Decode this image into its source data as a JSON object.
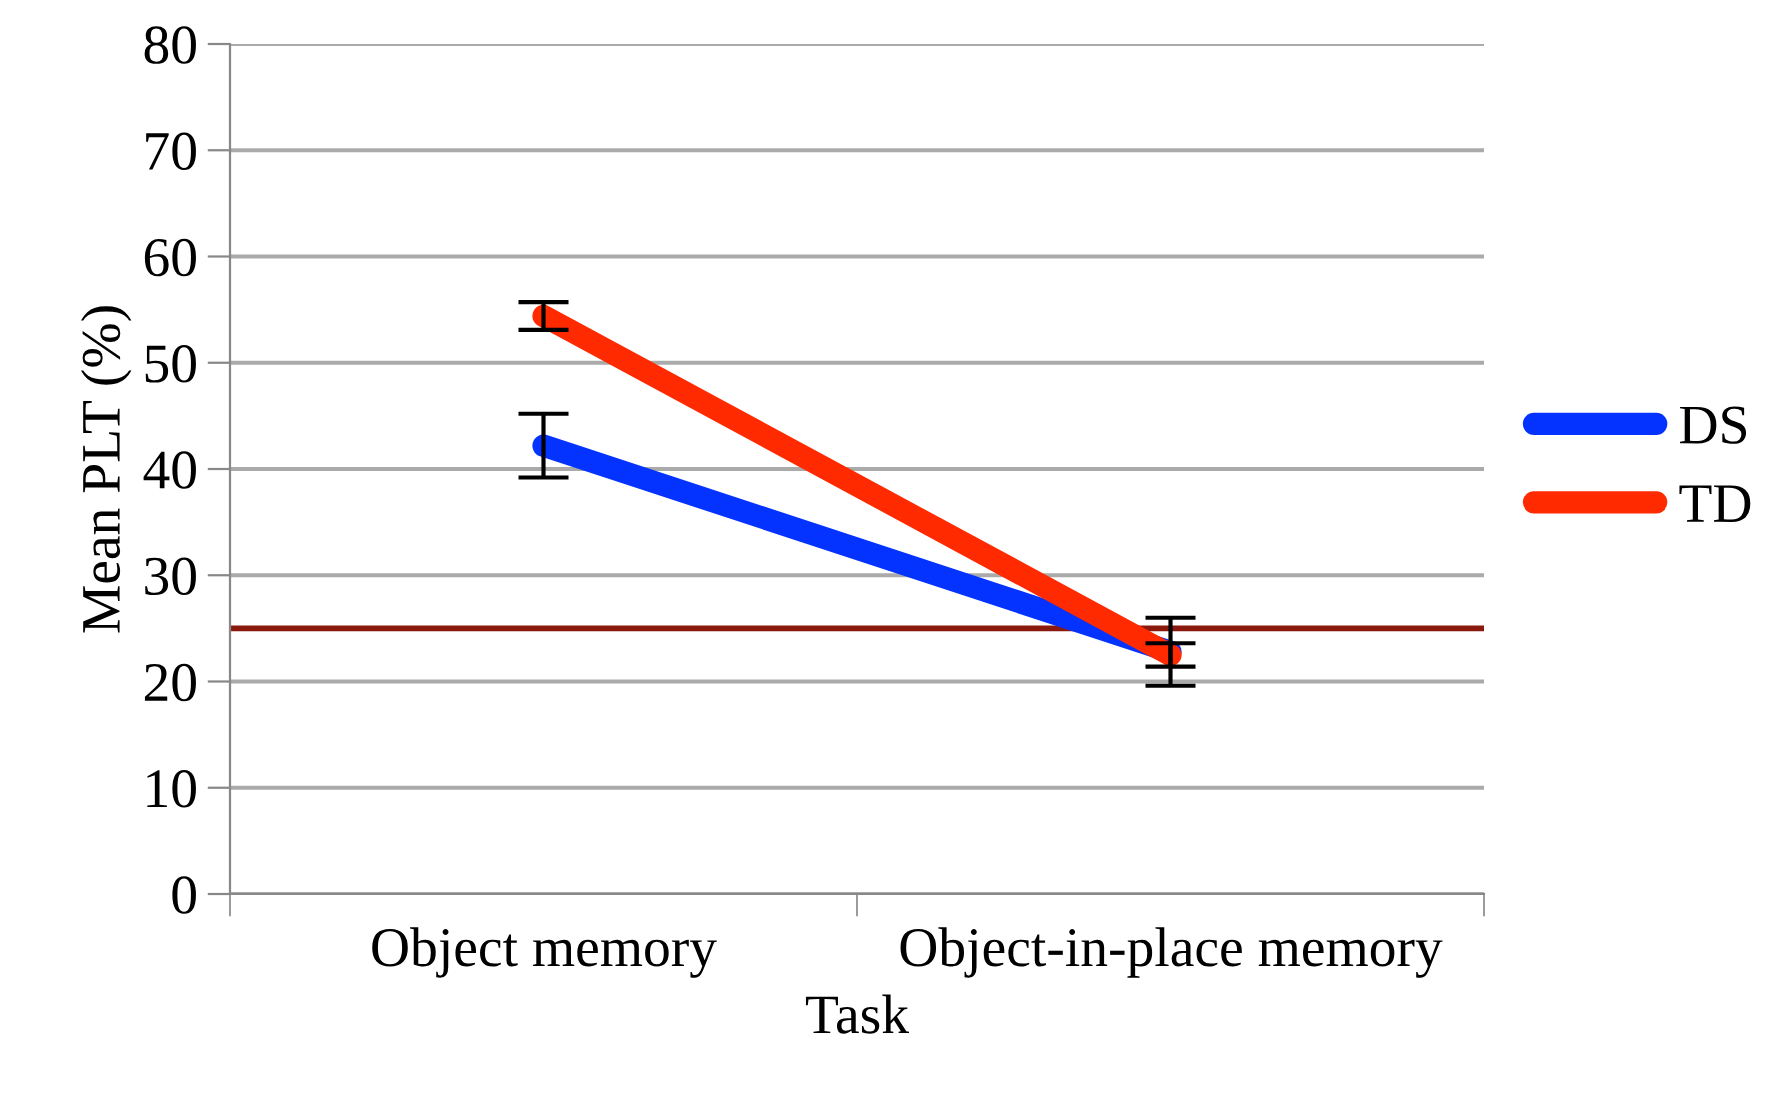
{
  "chart_data": {
    "type": "line",
    "xlabel": "Task",
    "ylabel": "Mean PLT (%)",
    "categories": [
      "Object memory",
      "Object-in-place memory"
    ],
    "series": [
      {
        "name": "DS",
        "color": "#0433ff",
        "values": [
          42.2,
          22.8
        ],
        "errors": [
          3.0,
          3.2
        ]
      },
      {
        "name": "TD",
        "color": "#ff2a00",
        "values": [
          54.4,
          22.5
        ],
        "errors": [
          1.3,
          1.1
        ]
      }
    ],
    "ylim": [
      0,
      80
    ],
    "yticks": [
      0,
      10,
      20,
      30,
      40,
      50,
      60,
      70,
      80
    ],
    "ref_lines": [
      {
        "axis": "y",
        "value": 25,
        "color": "#8b1a0e"
      }
    ],
    "grid": "y",
    "legend": "right",
    "line_style": "solid"
  }
}
